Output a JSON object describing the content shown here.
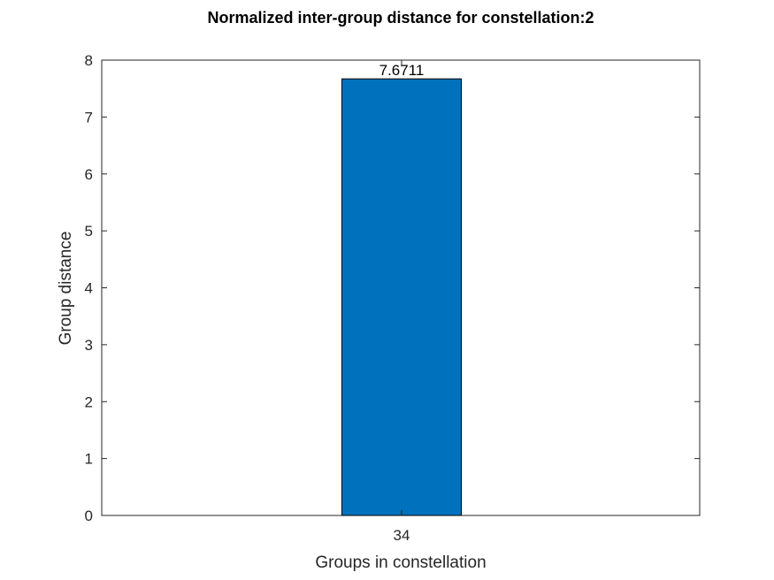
{
  "chart_data": {
    "type": "bar",
    "title": "Normalized inter-group distance for constellation:2",
    "xlabel": "Groups in constellation",
    "ylabel": "Group distance",
    "categories": [
      "34"
    ],
    "values": [
      7.6711
    ],
    "data_labels": [
      "7.6711"
    ],
    "ylim": [
      0,
      8
    ],
    "yticks": [
      0,
      1,
      2,
      3,
      4,
      5,
      6,
      7,
      8
    ],
    "ytick_labels": [
      "0",
      "1",
      "2",
      "3",
      "4",
      "5",
      "6",
      "7",
      "8"
    ],
    "grid": false,
    "bar_color": "#0072BD",
    "bar_edge_color": "#000000",
    "axis_color": "#262626"
  }
}
